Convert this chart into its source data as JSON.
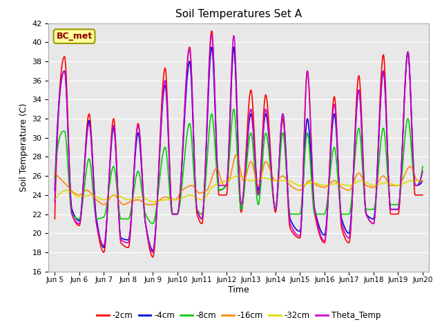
{
  "title": "Soil Temperatures Set A",
  "xlabel": "Time",
  "ylabel": "Soil Temperature (C)",
  "ylim": [
    16,
    42
  ],
  "yticks": [
    16,
    18,
    20,
    22,
    24,
    26,
    28,
    30,
    32,
    34,
    36,
    38,
    40,
    42
  ],
  "xlim": [
    4.75,
    20.25
  ],
  "xtick_labels": [
    "Jun 5",
    "Jun 6",
    "Jun 7",
    "Jun 8",
    "Jun 9",
    "Jun 10",
    "Jun 11",
    "Jun 12",
    "Jun 13",
    "Jun 14",
    "Jun 15",
    "Jun 16",
    "Jun 17",
    "Jun 18",
    "Jun 19",
    "Jun 20"
  ],
  "xtick_positions": [
    5,
    6,
    7,
    8,
    9,
    10,
    11,
    12,
    13,
    14,
    15,
    16,
    17,
    18,
    19,
    20
  ],
  "series": [
    {
      "label": "-2cm",
      "color": "#ff0000",
      "lw": 1.2
    },
    {
      "label": "-4cm",
      "color": "#0000dd",
      "lw": 1.2
    },
    {
      "label": "-8cm",
      "color": "#00cc00",
      "lw": 1.2
    },
    {
      "label": "-16cm",
      "color": "#ff8800",
      "lw": 1.2
    },
    {
      "label": "-32cm",
      "color": "#dddd00",
      "lw": 1.2
    },
    {
      "label": "Theta_Temp",
      "color": "#cc00cc",
      "lw": 1.2
    }
  ],
  "bc_met_label": "BC_met",
  "bc_met_fontcolor": "#8b0000",
  "bc_met_bgcolor": "#ffff99",
  "bc_met_edgecolor": "#999900",
  "plot_bg_color": "#e8e8e8",
  "grid_color": "#ffffff",
  "fig_bg_color": "#ffffff"
}
